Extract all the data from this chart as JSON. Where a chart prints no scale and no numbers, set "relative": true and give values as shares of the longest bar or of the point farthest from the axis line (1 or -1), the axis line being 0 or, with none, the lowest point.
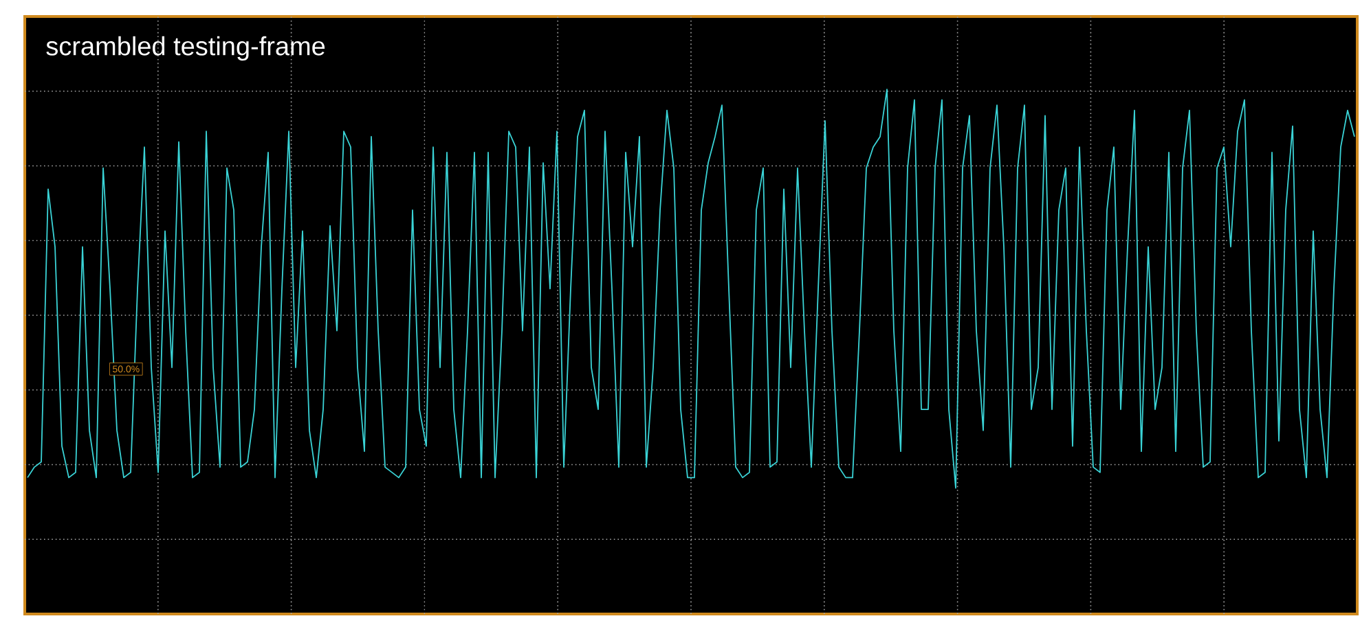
{
  "chart_data": {
    "type": "line",
    "title": "scrambled testing-frame",
    "relative": true,
    "color": "#3ad3d6",
    "marker": "none",
    "grid": true,
    "annotations": [
      "50.0%"
    ],
    "categories": [
      null,
      null,
      null,
      null,
      null,
      null,
      null,
      null,
      null,
      null,
      null,
      null,
      null,
      null,
      null,
      null,
      null,
      null,
      null,
      null,
      null,
      null,
      null,
      null,
      null,
      null,
      null,
      null,
      null,
      null,
      null,
      null,
      null,
      null,
      null,
      null,
      null,
      null,
      null,
      null,
      null,
      null,
      null,
      null,
      null,
      null,
      null,
      null,
      null,
      null,
      null,
      null,
      null,
      null,
      null,
      null,
      null,
      null,
      null,
      null,
      null,
      null,
      null,
      null,
      null,
      null,
      null,
      null,
      null,
      null,
      null,
      null,
      null,
      null,
      null,
      null,
      null,
      null,
      null,
      null,
      null,
      null,
      null,
      null,
      null,
      null,
      null,
      null,
      null,
      null,
      null,
      null,
      null,
      null,
      null,
      null,
      null,
      null,
      null,
      null,
      null,
      null,
      null,
      null,
      null,
      null,
      null,
      null,
      null,
      null,
      null,
      null,
      null,
      null,
      null,
      null,
      null,
      null,
      null,
      null,
      null,
      null,
      null,
      null,
      null,
      null,
      null,
      null,
      null,
      null,
      null,
      null,
      null,
      null,
      null,
      null,
      null,
      null,
      null,
      null,
      null,
      null,
      null,
      null,
      null,
      null,
      null,
      null,
      null,
      null,
      null,
      null,
      null,
      null,
      null,
      null,
      null,
      null,
      null,
      null,
      null,
      null,
      null,
      null,
      null,
      null,
      null,
      null,
      null,
      null,
      null,
      null,
      null,
      null,
      null,
      null,
      null,
      null,
      null,
      null,
      null,
      null,
      null,
      null,
      null,
      null,
      null,
      null,
      null,
      null,
      null,
      null,
      null,
      null
    ],
    "values": [
      0.26,
      0.28,
      0.29,
      0.81,
      0.7,
      0.32,
      0.26,
      0.27,
      0.7,
      0.35,
      0.26,
      0.85,
      0.62,
      0.35,
      0.26,
      0.27,
      0.62,
      0.89,
      0.47,
      0.27,
      0.73,
      0.47,
      0.9,
      0.54,
      0.26,
      0.27,
      0.92,
      0.47,
      0.28,
      0.85,
      0.77,
      0.28,
      0.29,
      0.39,
      0.7,
      0.88,
      0.26,
      0.62,
      0.92,
      0.47,
      0.73,
      0.35,
      0.26,
      0.39,
      0.74,
      0.54,
      0.92,
      0.89,
      0.47,
      0.31,
      0.91,
      0.54,
      0.28,
      0.27,
      0.26,
      0.28,
      0.77,
      0.39,
      0.32,
      0.89,
      0.47,
      0.88,
      0.39,
      0.26,
      0.54,
      0.88,
      0.26,
      0.88,
      0.26,
      0.54,
      0.92,
      0.89,
      0.54,
      0.89,
      0.26,
      0.86,
      0.62,
      0.92,
      0.28,
      0.62,
      0.91,
      0.96,
      0.47,
      0.39,
      0.92,
      0.62,
      0.28,
      0.88,
      0.7,
      0.91,
      0.28,
      0.47,
      0.77,
      0.96,
      0.85,
      0.39,
      0.26,
      0.26,
      0.77,
      0.86,
      0.91,
      0.97,
      0.62,
      0.28,
      0.26,
      0.27,
      0.77,
      0.85,
      0.28,
      0.29,
      0.81,
      0.47,
      0.85,
      0.54,
      0.28,
      0.62,
      0.94,
      0.54,
      0.28,
      0.26,
      0.26,
      0.54,
      0.85,
      0.89,
      0.91,
      1.0,
      0.54,
      0.31,
      0.85,
      0.98,
      0.39,
      0.39,
      0.85,
      0.98,
      0.39,
      0.24,
      0.85,
      0.95,
      0.54,
      0.35,
      0.85,
      0.97,
      0.7,
      0.28,
      0.85,
      0.97,
      0.39,
      0.47,
      0.95,
      0.39,
      0.77,
      0.85,
      0.32,
      0.89,
      0.54,
      0.28,
      0.27,
      0.77,
      0.89,
      0.39,
      0.7,
      0.96,
      0.31,
      0.7,
      0.39,
      0.47,
      0.88,
      0.31,
      0.85,
      0.96,
      0.54,
      0.28,
      0.29,
      0.85,
      0.89,
      0.7,
      0.92,
      0.98,
      0.54,
      0.26,
      0.27,
      0.88,
      0.33,
      0.77,
      0.93,
      0.39,
      0.26,
      0.73,
      0.39,
      0.26,
      0.62,
      0.89,
      0.96,
      0.91
    ]
  }
}
